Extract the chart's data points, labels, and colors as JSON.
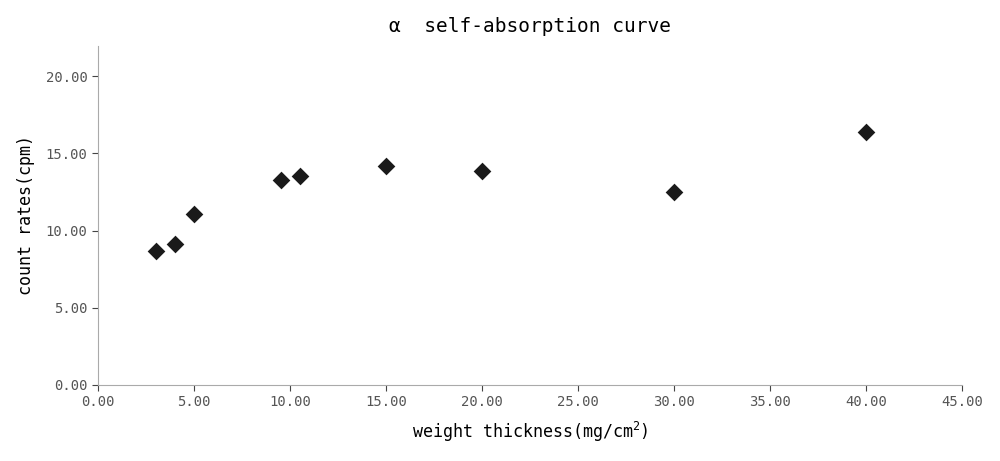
{
  "title": "α  self-absorption curve",
  "xlabel": "weight thickness(mg/cm$^2$)",
  "ylabel": "count rates(cpm)",
  "x_data": [
    3.0,
    4.0,
    5.0,
    9.5,
    10.5,
    15.0,
    20.0,
    30.0,
    40.0
  ],
  "y_data": [
    8.7,
    9.1,
    11.1,
    13.3,
    13.55,
    14.2,
    13.85,
    12.5,
    16.4
  ],
  "xlim": [
    0.0,
    45.0
  ],
  "ylim": [
    0.0,
    22.0
  ],
  "xticks": [
    0.0,
    5.0,
    10.0,
    15.0,
    20.0,
    25.0,
    30.0,
    35.0,
    40.0,
    45.0
  ],
  "yticks": [
    0.0,
    5.0,
    10.0,
    15.0,
    20.0
  ],
  "marker_color": "#1a1a1a",
  "marker_size": 9,
  "bg_color": "#ffffff",
  "title_fontsize": 14,
  "label_fontsize": 12,
  "tick_fontsize": 10,
  "spine_color": "#aaaaaa"
}
